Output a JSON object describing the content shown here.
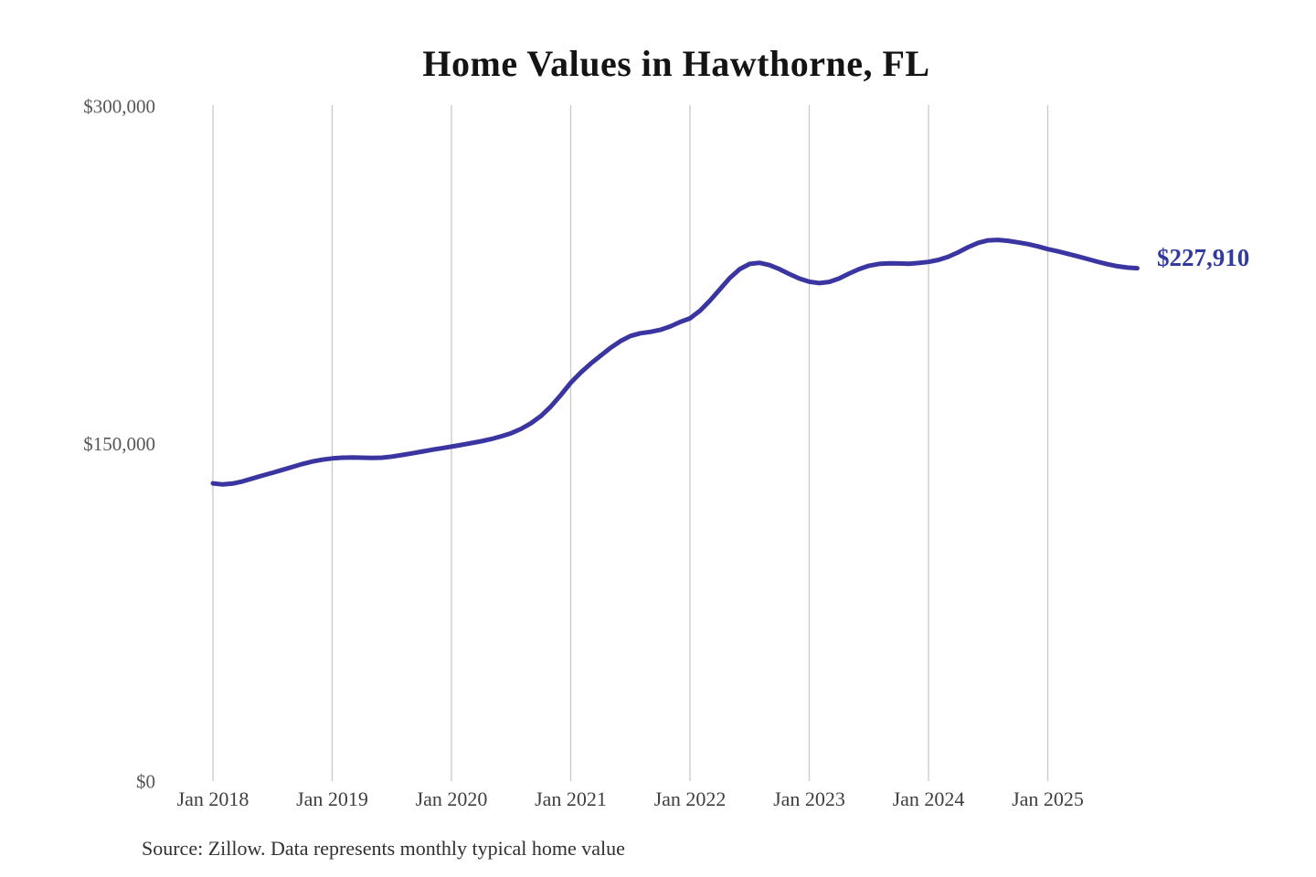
{
  "title": "Home Values in Hawthorne, FL",
  "source_note": "Source: Zillow. Data represents monthly typical home value",
  "colors": {
    "background": "#ffffff",
    "line": "#3a35a0",
    "end_label": "#333a9d",
    "gridline": "#c9c9c9",
    "y_tick_text": "#565656",
    "x_tick_text": "#3f3f3f",
    "title_text": "#141414",
    "source_text": "#303030"
  },
  "chart_data": {
    "type": "line",
    "title": "Home Values in Hawthorne, FL",
    "xlabel": "",
    "ylabel": "",
    "ylim": [
      0,
      300000
    ],
    "grid": "vertical-only",
    "legend": "none",
    "y_ticks": [
      {
        "value": 0,
        "label": "$0"
      },
      {
        "value": 150000,
        "label": "$150,000"
      },
      {
        "value": 300000,
        "label": "$300,000"
      }
    ],
    "x_tick_labels": [
      "Jan 2018",
      "Jan 2019",
      "Jan 2020",
      "Jan 2021",
      "Jan 2022",
      "Jan 2023",
      "Jan 2024",
      "Jan 2025"
    ],
    "series": [
      {
        "name": "Monthly typical home value",
        "start": "2018-01",
        "end": "2025-10",
        "freq": "monthly",
        "values": [
          132300,
          131800,
          132200,
          133200,
          134500,
          135800,
          137000,
          138300,
          139600,
          140900,
          142000,
          142800,
          143400,
          143700,
          143800,
          143700,
          143600,
          143700,
          144200,
          144900,
          145600,
          146400,
          147200,
          147900,
          148600,
          149400,
          150200,
          151000,
          152000,
          153200,
          154600,
          156500,
          159000,
          162200,
          166500,
          171500,
          177000,
          181500,
          185500,
          189000,
          192500,
          195500,
          197800,
          199000,
          199600,
          200500,
          202000,
          204000,
          205600,
          209000,
          213500,
          218500,
          223500,
          227500,
          229800,
          230300,
          229300,
          227500,
          225300,
          223300,
          221900,
          221300,
          221800,
          223300,
          225500,
          227500,
          229000,
          229800,
          230100,
          230000,
          229900,
          230200,
          230700,
          231600,
          233000,
          235000,
          237300,
          239200,
          240300,
          240500,
          240100,
          239400,
          238600,
          237600,
          236400,
          235400,
          234300,
          233200,
          232000,
          230800,
          229700,
          228800,
          228200,
          227910
        ]
      }
    ],
    "end_annotation": {
      "text": "$227,910",
      "value": 227910
    }
  }
}
